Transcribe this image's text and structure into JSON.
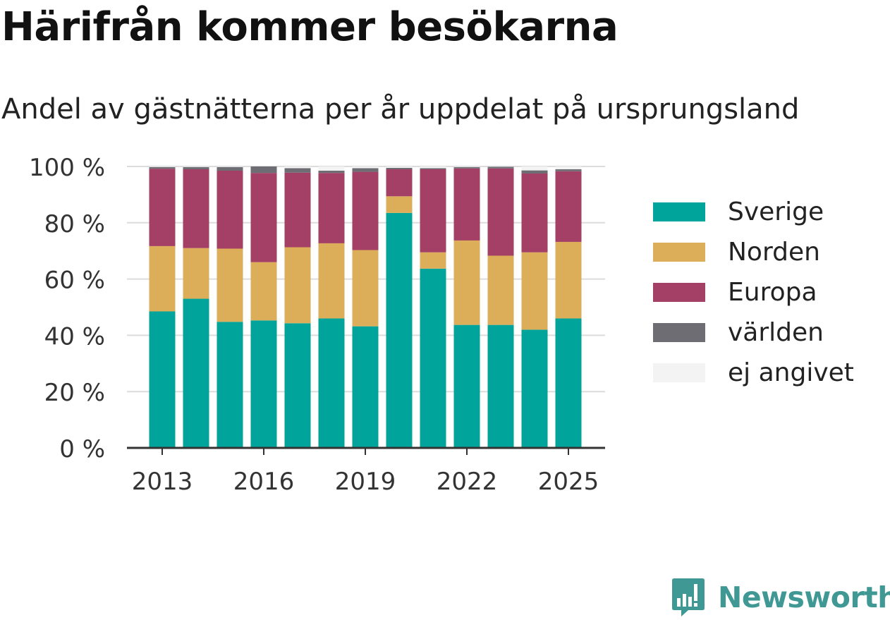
{
  "title": "Härifrån kommer besökarna",
  "subtitle": "Andel av gästnätterna per år uppdelat på ursprungsland",
  "brand": {
    "name": "Newsworthy",
    "icon": "bar-chart-speech-bubble-icon",
    "color": "#3f9893"
  },
  "chart_data": {
    "type": "bar",
    "stacked": true,
    "categories": [
      "2013",
      "2014",
      "2015",
      "2016",
      "2017",
      "2018",
      "2019",
      "2020",
      "2021",
      "2022",
      "2023",
      "2024",
      "2025"
    ],
    "x_tick_labels": [
      "2013",
      "2016",
      "2019",
      "2022",
      "2025"
    ],
    "y_tick_labels": [
      "0 %",
      "20 %",
      "40 %",
      "60 %",
      "80 %",
      "100 %"
    ],
    "ylim": [
      0,
      100
    ],
    "grid": true,
    "legend_position": "right",
    "series": [
      {
        "name": "Sverige",
        "color": "#00a49a",
        "values": [
          48.5,
          53,
          44.8,
          45.3,
          44.3,
          46,
          43.2,
          83.5,
          63.7,
          43.7,
          43.7,
          42,
          46
        ]
      },
      {
        "name": "Norden",
        "color": "#dcae5a",
        "values": [
          23.2,
          18,
          26,
          20.7,
          27,
          26.7,
          27.1,
          5.9,
          5.8,
          30,
          24.6,
          27.5,
          27.2
        ]
      },
      {
        "name": "Europa",
        "color": "#a43f65",
        "values": [
          27.5,
          28,
          27.7,
          31.7,
          26.5,
          25,
          27.8,
          9.6,
          29.5,
          25.6,
          31,
          28,
          25.1
        ]
      },
      {
        "name": "världen",
        "color": "#6e6d74",
        "values": [
          0.6,
          0.8,
          1.3,
          2.3,
          1.6,
          0.8,
          1.3,
          0.5,
          0.4,
          0.5,
          0.6,
          1.1,
          0.7
        ]
      },
      {
        "name": "ej angivet",
        "color": "#f3f3f3",
        "values": [
          0.2,
          0.2,
          0.2,
          0.0,
          0.6,
          1.5,
          0.6,
          0.5,
          0.6,
          0.2,
          0.1,
          1.4,
          1.0
        ]
      }
    ]
  }
}
